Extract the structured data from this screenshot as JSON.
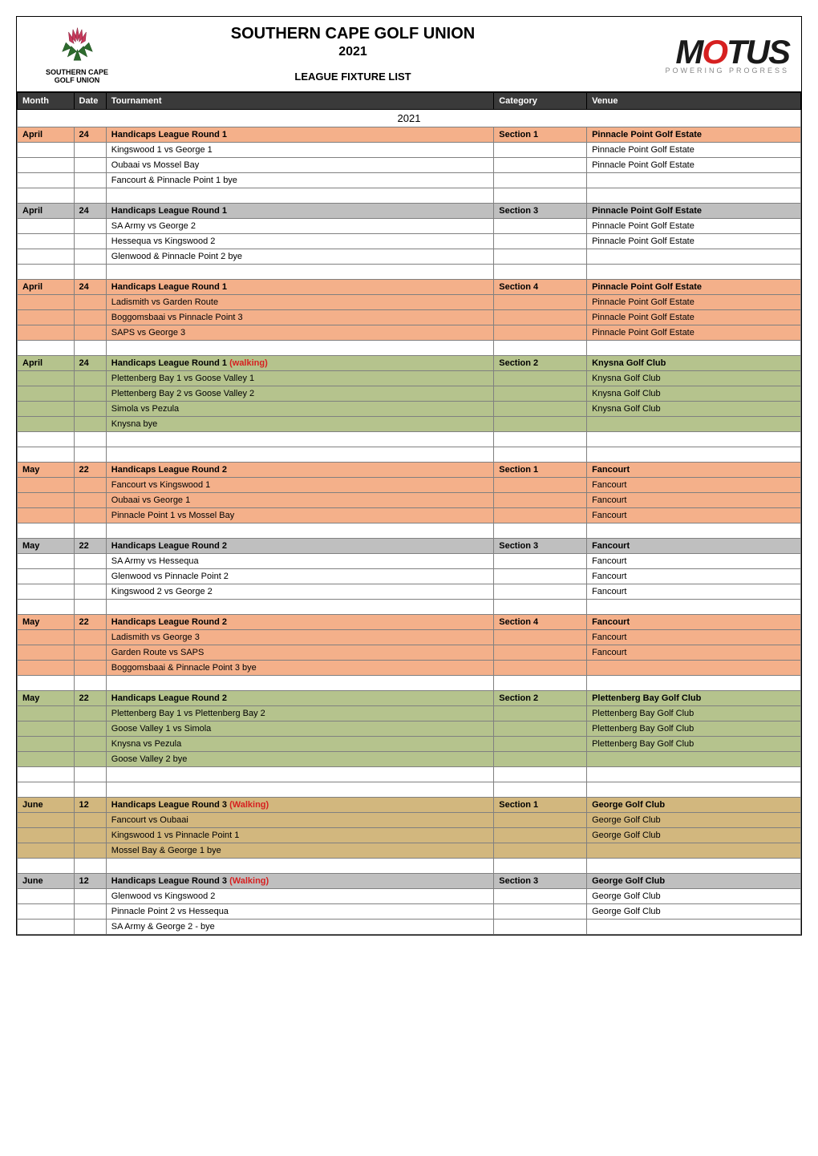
{
  "header": {
    "logo_left_line1": "SOUTHERN CAPE",
    "logo_left_line2": "GOLF UNION",
    "title": "SOUTHERN CAPE GOLF UNION",
    "year": "2021",
    "subtitle": "LEAGUE FIXTURE LIST",
    "sponsor_name": "MOTUS",
    "sponsor_tagline": "POWERING PROGRESS"
  },
  "columns": {
    "month": "Month",
    "date": "Date",
    "tournament": "Tournament",
    "category": "Category",
    "venue": "Venue"
  },
  "year_label": "2021",
  "blocks": [
    {
      "header_bg": "bg-salmon",
      "row_bg": "bg-white",
      "month": "April",
      "date": "24",
      "round_title": "Handicaps League Round 1",
      "section": "Section 1",
      "header_venue": "Pinnacle Point Golf Estate",
      "rows": [
        {
          "fixture": "Kingswood 1 vs George 1",
          "venue": "Pinnacle Point Golf Estate"
        },
        {
          "fixture": "Oubaai  vs Mossel Bay",
          "venue": "Pinnacle Point Golf Estate"
        },
        {
          "fixture": "Fancourt & Pinnacle Point 1 bye",
          "venue": ""
        }
      ]
    },
    {
      "header_bg": "bg-gray",
      "row_bg": "bg-white",
      "month": "April",
      "date": "24",
      "round_title": "Handicaps League Round 1",
      "section": "Section 3",
      "header_venue": "Pinnacle Point Golf Estate",
      "rows": [
        {
          "fixture": "SA Army vs George 2",
          "venue": "Pinnacle Point Golf Estate"
        },
        {
          "fixture": "Hessequa vs Kingswood 2",
          "venue": "Pinnacle Point Golf Estate"
        },
        {
          "fixture": "Glenwood & Pinnacle Point 2 bye",
          "venue": ""
        }
      ]
    },
    {
      "header_bg": "bg-salmon",
      "row_bg": "bg-salmon",
      "month": "April",
      "date": "24",
      "round_title": "Handicaps League Round 1",
      "section": "Section 4",
      "header_venue": "Pinnacle Point Golf Estate",
      "rows": [
        {
          "fixture": "Ladismith vs Garden Route",
          "venue": "Pinnacle Point Golf Estate"
        },
        {
          "fixture": "Boggomsbaai vs Pinnacle Point 3",
          "venue": "Pinnacle Point Golf Estate"
        },
        {
          "fixture": "SAPS vs George 3",
          "venue": "Pinnacle Point Golf Estate"
        }
      ]
    },
    {
      "header_bg": "bg-olive",
      "row_bg": "bg-olive",
      "month": "April",
      "date": "24",
      "round_title_prefix": "Handicaps League Round 1 ",
      "round_title_walking": "(walking)",
      "section": "Section 2",
      "header_venue": "Knysna Golf Club",
      "rows": [
        {
          "fixture": "Plettenberg Bay 1 vs Goose Valley 1",
          "venue": "Knysna Golf Club"
        },
        {
          "fixture": "Plettenberg Bay 2 vs Goose Valley 2",
          "venue": "Knysna Golf Club"
        },
        {
          "fixture": "Simola vs Pezula",
          "venue": "Knysna Golf Club"
        },
        {
          "fixture": "Knysna bye",
          "venue": ""
        }
      ]
    },
    {
      "header_bg": "bg-salmon",
      "row_bg": "bg-salmon",
      "month": "May",
      "date": "22",
      "round_title": "Handicaps League Round 2",
      "section": "Section 1",
      "header_venue": "Fancourt",
      "rows": [
        {
          "fixture": "Fancourt  vs Kingswood 1",
          "venue": "Fancourt"
        },
        {
          "fixture": "Oubaai  vs George 1",
          "venue": "Fancourt"
        },
        {
          "fixture": "Pinnacle Point 1 vs Mossel Bay",
          "venue": "Fancourt"
        }
      ]
    },
    {
      "header_bg": "bg-gray",
      "row_bg": "bg-white",
      "month": "May",
      "date": "22",
      "round_title": "Handicaps League Round 2",
      "section": "Section 3",
      "header_venue": "Fancourt",
      "rows": [
        {
          "fixture": "SA Army vs Hessequa",
          "venue": "Fancourt"
        },
        {
          "fixture": "Glenwood vs Pinnacle Point 2",
          "venue": "Fancourt"
        },
        {
          "fixture": "Kingswood 2 vs George 2",
          "venue": "Fancourt"
        }
      ]
    },
    {
      "header_bg": "bg-salmon",
      "row_bg": "bg-salmon",
      "month": "May",
      "date": "22",
      "round_title": "Handicaps League Round 2",
      "section": "Section 4",
      "header_venue": "Fancourt",
      "rows": [
        {
          "fixture": "Ladismith vs George 3",
          "venue": "Fancourt"
        },
        {
          "fixture": "Garden Route vs SAPS",
          "venue": "Fancourt"
        },
        {
          "fixture": "Boggomsbaai & Pinnacle Point 3 bye",
          "venue": ""
        }
      ]
    },
    {
      "header_bg": "bg-olive",
      "row_bg": "bg-olive",
      "month": "May",
      "date": "22",
      "round_title": "Handicaps League Round 2",
      "section": "Section 2",
      "header_venue": "Plettenberg Bay Golf Club",
      "rows": [
        {
          "fixture": "Plettenberg Bay 1 vs Plettenberg Bay 2",
          "venue": "Plettenberg Bay Golf Club"
        },
        {
          "fixture": "Goose Valley 1 vs Simola",
          "venue": "Plettenberg Bay Golf Club"
        },
        {
          "fixture": "Knysna vs Pezula",
          "venue": "Plettenberg Bay Golf Club"
        },
        {
          "fixture": "Goose Valley 2 bye",
          "venue": ""
        }
      ]
    },
    {
      "header_bg": "bg-tan",
      "row_bg": "bg-tan",
      "month": "June",
      "date": "12",
      "round_title_prefix": "Handicaps League Round 3 ",
      "round_title_walking": "(Walking)",
      "section": "Section 1",
      "header_venue": "George Golf Club",
      "rows": [
        {
          "fixture": "Fancourt  vs Oubaai",
          "venue": "George Golf Club"
        },
        {
          "fixture": "Kingswood 1 vs Pinnacle Point 1",
          "venue": "George Golf Club"
        },
        {
          "fixture": "Mossel Bay & George 1 bye",
          "venue": ""
        }
      ]
    },
    {
      "header_bg": "bg-gray",
      "row_bg": "bg-white",
      "month": "June",
      "date": "12",
      "round_title_prefix": "Handicaps League Round 3 ",
      "round_title_walking": "(Walking)",
      "section": "Section 3",
      "header_venue": "George Golf Club",
      "rows": [
        {
          "fixture": "Glenwood vs Kingswood 2",
          "venue": "George Golf Club"
        },
        {
          "fixture": "Pinnacle Point 2 vs Hessequa",
          "venue": "George Golf Club"
        },
        {
          "fixture": "SA Army & George 2 - bye",
          "venue": ""
        }
      ]
    }
  ]
}
